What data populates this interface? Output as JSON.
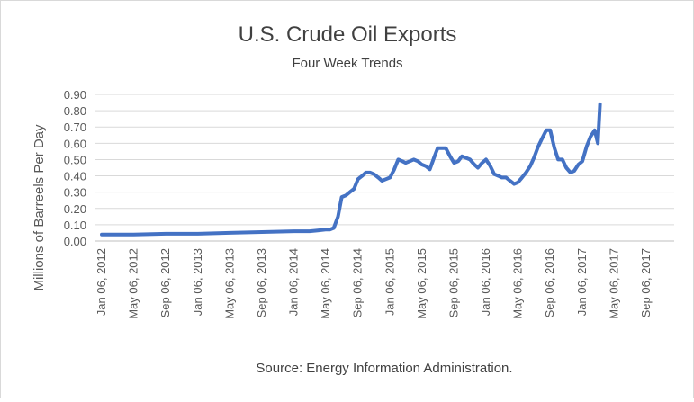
{
  "chart_data": {
    "type": "line",
    "title": "U.S. Crude Oil Exports",
    "subtitle": "Four Week Trends",
    "ylabel": "Millions of Barreels Per Day",
    "xlabel": "",
    "source": "Source: Energy Information Administration.",
    "ylim": [
      0,
      0.9
    ],
    "yticks": [
      "0.00",
      "0.10",
      "0.20",
      "0.30",
      "0.40",
      "0.50",
      "0.60",
      "0.70",
      "0.80",
      "0.90"
    ],
    "xticks": [
      "Jan 06, 2012",
      "May 06, 2012",
      "Sep 06, 2012",
      "Jan 06, 2013",
      "May 06, 2013",
      "Sep 06, 2013",
      "Jan 06, 2014",
      "May 06, 2014",
      "Sep 06, 2014",
      "Jan 06, 2015",
      "May 06, 2015",
      "Sep 06, 2015",
      "Jan 06, 2016",
      "May 06, 2016",
      "Sep 06, 2016",
      "Jan 06, 2017",
      "May 06, 2017",
      "Sep 06, 2017"
    ],
    "grid": true,
    "line_color": "#4472c4",
    "series": [
      {
        "x": [
          "2012-01-06",
          "2012-05-06",
          "2012-09-06",
          "2013-01-06",
          "2013-05-06",
          "2013-09-06",
          "2014-01-06",
          "2014-03-06",
          "2014-04-06",
          "2014-05-06",
          "2014-05-22",
          "2014-06-06",
          "2014-06-22",
          "2014-07-06",
          "2014-07-22",
          "2014-08-06",
          "2014-08-22",
          "2014-09-06",
          "2014-09-22",
          "2014-10-06",
          "2014-10-22",
          "2014-11-06",
          "2014-11-22",
          "2014-12-06",
          "2014-12-22",
          "2015-01-06",
          "2015-01-22",
          "2015-02-06",
          "2015-02-22",
          "2015-03-06",
          "2015-03-22",
          "2015-04-06",
          "2015-04-22",
          "2015-05-06",
          "2015-05-22",
          "2015-06-06",
          "2015-06-22",
          "2015-07-06",
          "2015-07-22",
          "2015-08-06",
          "2015-08-22",
          "2015-09-06",
          "2015-09-22",
          "2015-10-06",
          "2015-10-22",
          "2015-11-06",
          "2015-11-22",
          "2015-12-06",
          "2015-12-22",
          "2016-01-06",
          "2016-01-22",
          "2016-02-06",
          "2016-02-22",
          "2016-03-06",
          "2016-03-22",
          "2016-04-06",
          "2016-04-22",
          "2016-05-06",
          "2016-05-22",
          "2016-06-06",
          "2016-06-22",
          "2016-07-06",
          "2016-07-22",
          "2016-08-06",
          "2016-08-22",
          "2016-09-06",
          "2016-09-22",
          "2016-10-06",
          "2016-10-22",
          "2016-11-06",
          "2016-11-22",
          "2016-12-06",
          "2016-12-22",
          "2017-01-06",
          "2017-01-22",
          "2017-02-06",
          "2017-02-22",
          "2017-03-06",
          "2017-03-14"
        ],
        "values": [
          0.04,
          0.04,
          0.045,
          0.045,
          0.05,
          0.055,
          0.06,
          0.06,
          0.065,
          0.07,
          0.07,
          0.08,
          0.15,
          0.27,
          0.28,
          0.3,
          0.32,
          0.38,
          0.4,
          0.42,
          0.42,
          0.41,
          0.39,
          0.37,
          0.38,
          0.39,
          0.44,
          0.5,
          0.49,
          0.48,
          0.49,
          0.5,
          0.49,
          0.47,
          0.46,
          0.44,
          0.51,
          0.57,
          0.57,
          0.57,
          0.52,
          0.48,
          0.49,
          0.52,
          0.51,
          0.5,
          0.47,
          0.45,
          0.48,
          0.5,
          0.46,
          0.41,
          0.4,
          0.39,
          0.39,
          0.37,
          0.35,
          0.36,
          0.39,
          0.42,
          0.46,
          0.51,
          0.58,
          0.63,
          0.68,
          0.68,
          0.57,
          0.5,
          0.5,
          0.45,
          0.42,
          0.43,
          0.47,
          0.49,
          0.58,
          0.64,
          0.68,
          0.6,
          0.84
        ]
      }
    ]
  }
}
